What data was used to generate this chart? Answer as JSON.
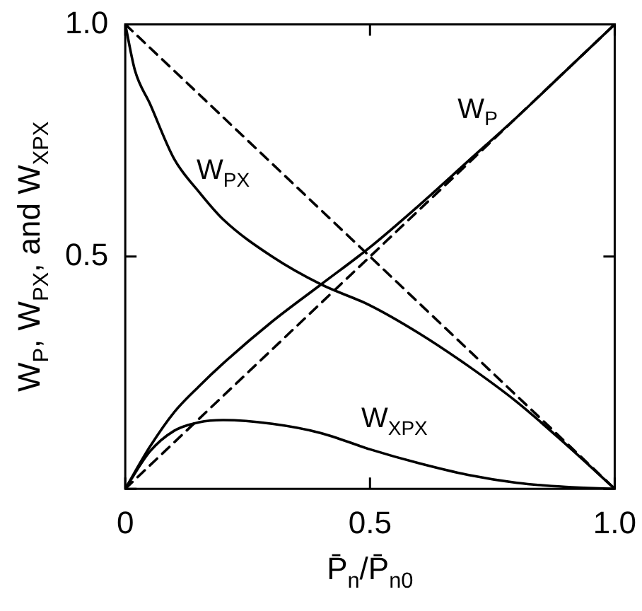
{
  "chart_data": {
    "type": "line",
    "xlabel": "P̄$_{n}$/P̄$_{n0}$",
    "ylabel": "W$_{P}$, W$_{PX}$, and W$_{XPX}$",
    "xlim": [
      0,
      1
    ],
    "ylim": [
      0,
      1
    ],
    "xticks": [
      0,
      0.5,
      {
        "value": 1,
        "label": "1.0"
      }
    ],
    "yticks": [
      {
        "value": 0,
        "label": null
      },
      0.5,
      {
        "value": 1,
        "label": "1.0"
      }
    ],
    "grid": false,
    "legend": false,
    "series": [
      {
        "name": "W$_{P}$",
        "color": "#000000",
        "line_style": "solid",
        "x": [
          0,
          0.05,
          0.1,
          0.15,
          0.2,
          0.3,
          0.4,
          0.5,
          0.6,
          0.7,
          0.8,
          0.9,
          1
        ],
        "values": [
          0,
          0.09,
          0.165,
          0.22,
          0.27,
          0.36,
          0.44,
          0.52,
          0.61,
          0.705,
          0.8,
          0.9,
          1
        ]
      },
      {
        "name": "W$_{PX}$",
        "color": "#000000",
        "line_style": "solid",
        "x": [
          0,
          0.02,
          0.05,
          0.1,
          0.15,
          0.2,
          0.3,
          0.4,
          0.5,
          0.6,
          0.7,
          0.8,
          0.9,
          1
        ],
        "values": [
          1,
          0.9,
          0.83,
          0.71,
          0.64,
          0.58,
          0.5,
          0.44,
          0.395,
          0.335,
          0.265,
          0.187,
          0.096,
          0
        ]
      },
      {
        "name": "W$_{XPX}$",
        "color": "#000000",
        "line_style": "solid",
        "x": [
          0,
          0.05,
          0.1,
          0.15,
          0.2,
          0.3,
          0.4,
          0.5,
          0.6,
          0.7,
          0.8,
          0.9,
          1
        ],
        "values": [
          0,
          0.08,
          0.125,
          0.143,
          0.148,
          0.14,
          0.12,
          0.085,
          0.055,
          0.03,
          0.013,
          0.004,
          0
        ]
      },
      {
        "color": "#000000",
        "line_style": "dashed",
        "x": [
          0,
          1
        ],
        "values": [
          0,
          1
        ]
      },
      {
        "color": "#000000",
        "line_style": "dashed",
        "x": [
          0,
          1
        ],
        "values": [
          1,
          0
        ]
      }
    ]
  }
}
